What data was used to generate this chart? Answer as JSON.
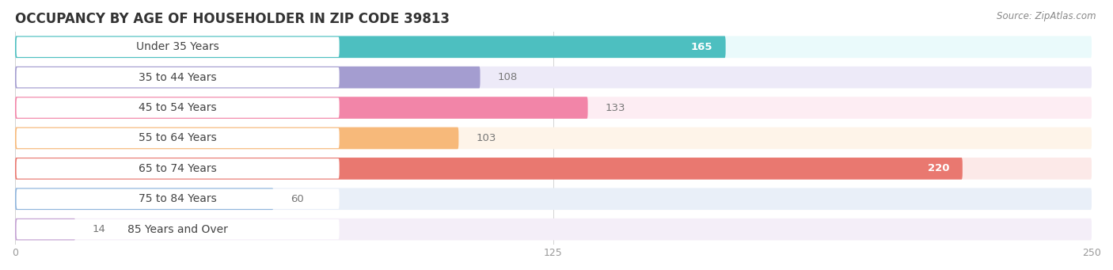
{
  "title": "OCCUPANCY BY AGE OF HOUSEHOLDER IN ZIP CODE 39813",
  "source": "Source: ZipAtlas.com",
  "categories": [
    "Under 35 Years",
    "35 to 44 Years",
    "45 to 54 Years",
    "55 to 64 Years",
    "65 to 74 Years",
    "75 to 84 Years",
    "85 Years and Over"
  ],
  "values": [
    165,
    108,
    133,
    103,
    220,
    60,
    14
  ],
  "bar_colors": [
    "#4DBFC0",
    "#A49DD0",
    "#F285A8",
    "#F7B97A",
    "#E97870",
    "#8FB5DC",
    "#C4A2D3"
  ],
  "bar_bg_colors": [
    "#EAFAFB",
    "#EDEAF8",
    "#FDEDF3",
    "#FEF4E9",
    "#FCE9E8",
    "#E9EFF8",
    "#F4EEF8"
  ],
  "xlim": [
    0,
    250
  ],
  "xticks": [
    0,
    125,
    250
  ],
  "title_fontsize": 12,
  "label_fontsize": 10,
  "value_fontsize": 9.5,
  "background_color": "#ffffff"
}
